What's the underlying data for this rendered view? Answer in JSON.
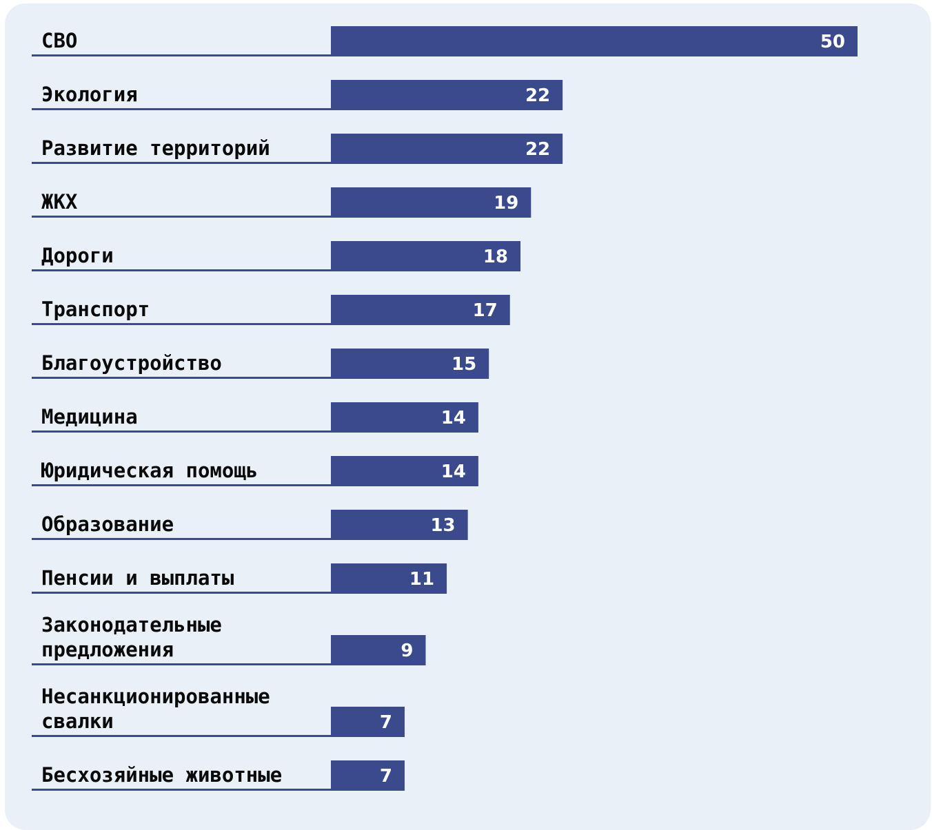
{
  "chart_data": {
    "type": "bar",
    "orientation": "horizontal",
    "categories": [
      [
        "СВО"
      ],
      [
        "Экология"
      ],
      [
        "Развитие территорий"
      ],
      [
        "ЖКХ"
      ],
      [
        "Дороги"
      ],
      [
        "Транспорт"
      ],
      [
        "Благоустройство"
      ],
      [
        "Медицина"
      ],
      [
        "Юридическая помощь"
      ],
      [
        "Образование"
      ],
      [
        "Пенсии и выплаты"
      ],
      [
        "Законодательные",
        "предложения"
      ],
      [
        "Несанкционированные",
        "свалки"
      ],
      [
        "Бесхозяйные животные"
      ]
    ],
    "values": [
      50,
      22,
      22,
      19,
      18,
      17,
      15,
      14,
      14,
      13,
      11,
      9,
      7,
      7
    ],
    "title": "",
    "xlabel": "",
    "ylabel": "",
    "xlim": [
      0,
      50
    ],
    "grid": false,
    "legend": "none",
    "colors": {
      "bar": "#3a4a8c",
      "underline": "#3a4a8c",
      "background": "#eaf0f8",
      "label": "#0a0a0a",
      "value_text": "#ffffff"
    }
  }
}
